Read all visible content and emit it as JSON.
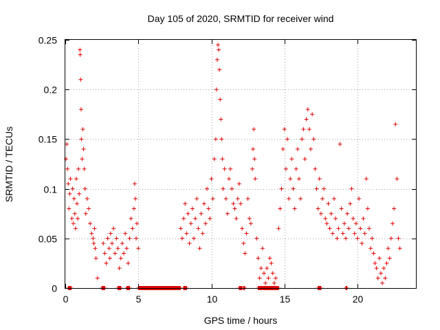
{
  "chart_data": {
    "type": "scatter",
    "title": "Day 105 of 2020, SRMTID for receiver wind",
    "xlabel": "GPS time / hours",
    "ylabel": "SRMTID / TECUs",
    "xlim": [
      0,
      24
    ],
    "ylim": [
      0,
      0.25
    ],
    "x_ticks": [
      0,
      5,
      10,
      15,
      20
    ],
    "x_tick_labels": [
      "0",
      "5",
      "10",
      "15",
      "20"
    ],
    "y_ticks": [
      0,
      0.05,
      0.1,
      0.15,
      0.2,
      0.25
    ],
    "y_tick_labels": [
      "0",
      "0.05",
      "0.1",
      "0.15",
      "0.2",
      "0.25"
    ],
    "grid": true,
    "marker": "plus",
    "color": "#e00000",
    "series": [
      {
        "name": "SRMTID",
        "points": [
          [
            0.05,
            0.13
          ],
          [
            0.1,
            0.145
          ],
          [
            0.15,
            0.12
          ],
          [
            0.2,
            0.105
          ],
          [
            0.25,
            0.08
          ],
          [
            0.3,
            0.095
          ],
          [
            0.35,
            0.11
          ],
          [
            0.45,
            0.07
          ],
          [
            0.5,
            0.1
          ],
          [
            0.55,
            0.065
          ],
          [
            0.6,
            0.09
          ],
          [
            0.65,
            0.075
          ],
          [
            0.7,
            0.06
          ],
          [
            0.75,
            0.11
          ],
          [
            0.8,
            0.085
          ],
          [
            0.85,
            0.07
          ],
          [
            0.9,
            0.12
          ],
          [
            0.95,
            0.095
          ],
          [
            1.0,
            0.24
          ],
          [
            1.02,
            0.235
          ],
          [
            1.05,
            0.21
          ],
          [
            1.08,
            0.18
          ],
          [
            1.1,
            0.15
          ],
          [
            1.15,
            0.13
          ],
          [
            1.2,
            0.16
          ],
          [
            1.25,
            0.14
          ],
          [
            1.3,
            0.12
          ],
          [
            1.35,
            0.1
          ],
          [
            1.4,
            0.075
          ],
          [
            1.5,
            0.09
          ],
          [
            1.6,
            0.08
          ],
          [
            1.7,
            0.065
          ],
          [
            1.8,
            0.055
          ],
          [
            1.9,
            0.05
          ],
          [
            1.95,
            0.045
          ],
          [
            2.0,
            0.06
          ],
          [
            2.05,
            0.04
          ],
          [
            2.1,
            0.03
          ],
          [
            2.2,
            0.01
          ],
          [
            2.6,
            0.045
          ],
          [
            2.7,
            0.035
          ],
          [
            2.8,
            0.025
          ],
          [
            2.9,
            0.05
          ],
          [
            3.0,
            0.04
          ],
          [
            3.05,
            0.03
          ],
          [
            3.1,
            0.055
          ],
          [
            3.2,
            0.045
          ],
          [
            3.3,
            0.06
          ],
          [
            3.4,
            0.035
          ],
          [
            3.5,
            0.05
          ],
          [
            3.6,
            0.04
          ],
          [
            3.7,
            0.02
          ],
          [
            3.8,
            0.03
          ],
          [
            3.9,
            0.045
          ],
          [
            4.0,
            0.035
          ],
          [
            4.1,
            0.055
          ],
          [
            4.2,
            0.04
          ],
          [
            4.3,
            0.025
          ],
          [
            4.4,
            0.05
          ],
          [
            4.5,
            0.07
          ],
          [
            4.6,
            0.06
          ],
          [
            4.7,
            0.08
          ],
          [
            4.75,
            0.105
          ],
          [
            4.8,
            0.09
          ],
          [
            4.85,
            0.05
          ],
          [
            4.9,
            0.065
          ],
          [
            5.0,
            0.04
          ],
          [
            7.9,
            0.06
          ],
          [
            8.0,
            0.05
          ],
          [
            8.1,
            0.07
          ],
          [
            8.2,
            0.085
          ],
          [
            8.3,
            0.055
          ],
          [
            8.4,
            0.075
          ],
          [
            8.5,
            0.045
          ],
          [
            8.6,
            0.065
          ],
          [
            8.7,
            0.08
          ],
          [
            8.8,
            0.05
          ],
          [
            8.9,
            0.07
          ],
          [
            9.0,
            0.09
          ],
          [
            9.1,
            0.06
          ],
          [
            9.2,
            0.04
          ],
          [
            9.3,
            0.075
          ],
          [
            9.4,
            0.055
          ],
          [
            9.5,
            0.085
          ],
          [
            9.6,
            0.065
          ],
          [
            9.7,
            0.1
          ],
          [
            9.8,
            0.08
          ],
          [
            9.9,
            0.07
          ],
          [
            10.0,
            0.11
          ],
          [
            10.1,
            0.09
          ],
          [
            10.2,
            0.13
          ],
          [
            10.3,
            0.15
          ],
          [
            10.35,
            0.2
          ],
          [
            10.4,
            0.23
          ],
          [
            10.45,
            0.245
          ],
          [
            10.5,
            0.24
          ],
          [
            10.55,
            0.22
          ],
          [
            10.6,
            0.19
          ],
          [
            10.65,
            0.17
          ],
          [
            10.7,
            0.15
          ],
          [
            10.75,
            0.13
          ],
          [
            10.8,
            0.1
          ],
          [
            10.9,
            0.12
          ],
          [
            11.0,
            0.09
          ],
          [
            11.1,
            0.075
          ],
          [
            11.2,
            0.11
          ],
          [
            11.3,
            0.12
          ],
          [
            11.4,
            0.1
          ],
          [
            11.5,
            0.085
          ],
          [
            11.6,
            0.08
          ],
          [
            11.7,
            0.07
          ],
          [
            11.8,
            0.09
          ],
          [
            11.9,
            0.105
          ],
          [
            12.0,
            0.085
          ],
          [
            12.1,
            0.06
          ],
          [
            12.2,
            0.045
          ],
          [
            12.3,
            0.035
          ],
          [
            12.4,
            0.055
          ],
          [
            12.5,
            0.09
          ],
          [
            12.6,
            0.07
          ],
          [
            12.7,
            0.065
          ],
          [
            12.8,
            0.12
          ],
          [
            12.85,
            0.14
          ],
          [
            12.9,
            0.16
          ],
          [
            12.95,
            0.13
          ],
          [
            13.0,
            0.11
          ],
          [
            13.1,
            0.05
          ],
          [
            13.2,
            0.03
          ],
          [
            13.3,
            0.01
          ],
          [
            13.4,
            0.02
          ],
          [
            13.5,
            0.04
          ],
          [
            13.6,
            0.015
          ],
          [
            13.7,
            0.005
          ],
          [
            13.8,
            0.02
          ],
          [
            13.9,
            0.01
          ],
          [
            14.0,
            0.03
          ],
          [
            14.1,
            0.025
          ],
          [
            14.2,
            0.015
          ],
          [
            14.3,
            0.005
          ],
          [
            14.4,
            0.01
          ],
          [
            14.6,
            0.06
          ],
          [
            14.7,
            0.08
          ],
          [
            14.8,
            0.1
          ],
          [
            14.9,
            0.14
          ],
          [
            15.0,
            0.16
          ],
          [
            15.1,
            0.12
          ],
          [
            15.2,
            0.15
          ],
          [
            15.3,
            0.09
          ],
          [
            15.4,
            0.11
          ],
          [
            15.5,
            0.13
          ],
          [
            15.6,
            0.1
          ],
          [
            15.7,
            0.08
          ],
          [
            15.8,
            0.12
          ],
          [
            15.9,
            0.14
          ],
          [
            16.0,
            0.11
          ],
          [
            16.1,
            0.09
          ],
          [
            16.2,
            0.15
          ],
          [
            16.3,
            0.16
          ],
          [
            16.4,
            0.13
          ],
          [
            16.5,
            0.17
          ],
          [
            16.6,
            0.18
          ],
          [
            16.7,
            0.16
          ],
          [
            16.8,
            0.14
          ],
          [
            16.9,
            0.175
          ],
          [
            17.0,
            0.15
          ],
          [
            17.1,
            0.12
          ],
          [
            17.2,
            0.1
          ],
          [
            17.3,
            0.08
          ],
          [
            17.4,
            0.11
          ],
          [
            17.5,
            0.075
          ],
          [
            17.6,
            0.09
          ],
          [
            17.7,
            0.1
          ],
          [
            17.8,
            0.07
          ],
          [
            17.9,
            0.065
          ],
          [
            18.0,
            0.085
          ],
          [
            18.1,
            0.06
          ],
          [
            18.2,
            0.075
          ],
          [
            18.3,
            0.055
          ],
          [
            18.4,
            0.09
          ],
          [
            18.5,
            0.07
          ],
          [
            18.6,
            0.05
          ],
          [
            18.7,
            0.06
          ],
          [
            18.8,
            0.145
          ],
          [
            18.9,
            0.08
          ],
          [
            19.0,
            0.055
          ],
          [
            19.1,
            0.065
          ],
          [
            19.2,
            0.05
          ],
          [
            19.3,
            0.075
          ],
          [
            19.4,
            0.06
          ],
          [
            19.5,
            0.085
          ],
          [
            19.6,
            0.1
          ],
          [
            19.7,
            0.07
          ],
          [
            19.8,
            0.055
          ],
          [
            19.9,
            0.065
          ],
          [
            20.0,
            0.05
          ],
          [
            20.1,
            0.09
          ],
          [
            20.2,
            0.06
          ],
          [
            20.3,
            0.045
          ],
          [
            20.4,
            0.07
          ],
          [
            20.5,
            0.055
          ],
          [
            20.6,
            0.11
          ],
          [
            20.7,
            0.08
          ],
          [
            20.8,
            0.06
          ],
          [
            20.9,
            0.04
          ],
          [
            21.0,
            0.05
          ],
          [
            21.1,
            0.035
          ],
          [
            21.2,
            0.025
          ],
          [
            21.3,
            0.02
          ],
          [
            21.4,
            0.01
          ],
          [
            21.5,
            0.03
          ],
          [
            21.6,
            0.015
          ],
          [
            21.7,
            0.005
          ],
          [
            21.8,
            0.02
          ],
          [
            21.9,
            0.01
          ],
          [
            22.0,
            0.025
          ],
          [
            22.1,
            0.04
          ],
          [
            22.2,
            0.03
          ],
          [
            22.3,
            0.05
          ],
          [
            22.4,
            0.065
          ],
          [
            22.5,
            0.08
          ],
          [
            22.6,
            0.165
          ],
          [
            22.7,
            0.11
          ],
          [
            22.8,
            0.05
          ],
          [
            22.9,
            0.04
          ]
        ],
        "zero_clusters": [
          [
            0.2,
            0.4
          ],
          [
            2.5,
            2.7
          ],
          [
            3.6,
            3.8
          ],
          [
            4.2,
            4.4
          ],
          [
            5.0,
            7.9
          ],
          [
            8.1,
            8.3
          ],
          [
            11.9,
            12.1
          ],
          [
            12.2,
            12.3
          ],
          [
            13.2,
            14.6
          ],
          [
            17.3,
            17.5
          ],
          [
            19.2,
            19.3
          ]
        ]
      }
    ]
  }
}
